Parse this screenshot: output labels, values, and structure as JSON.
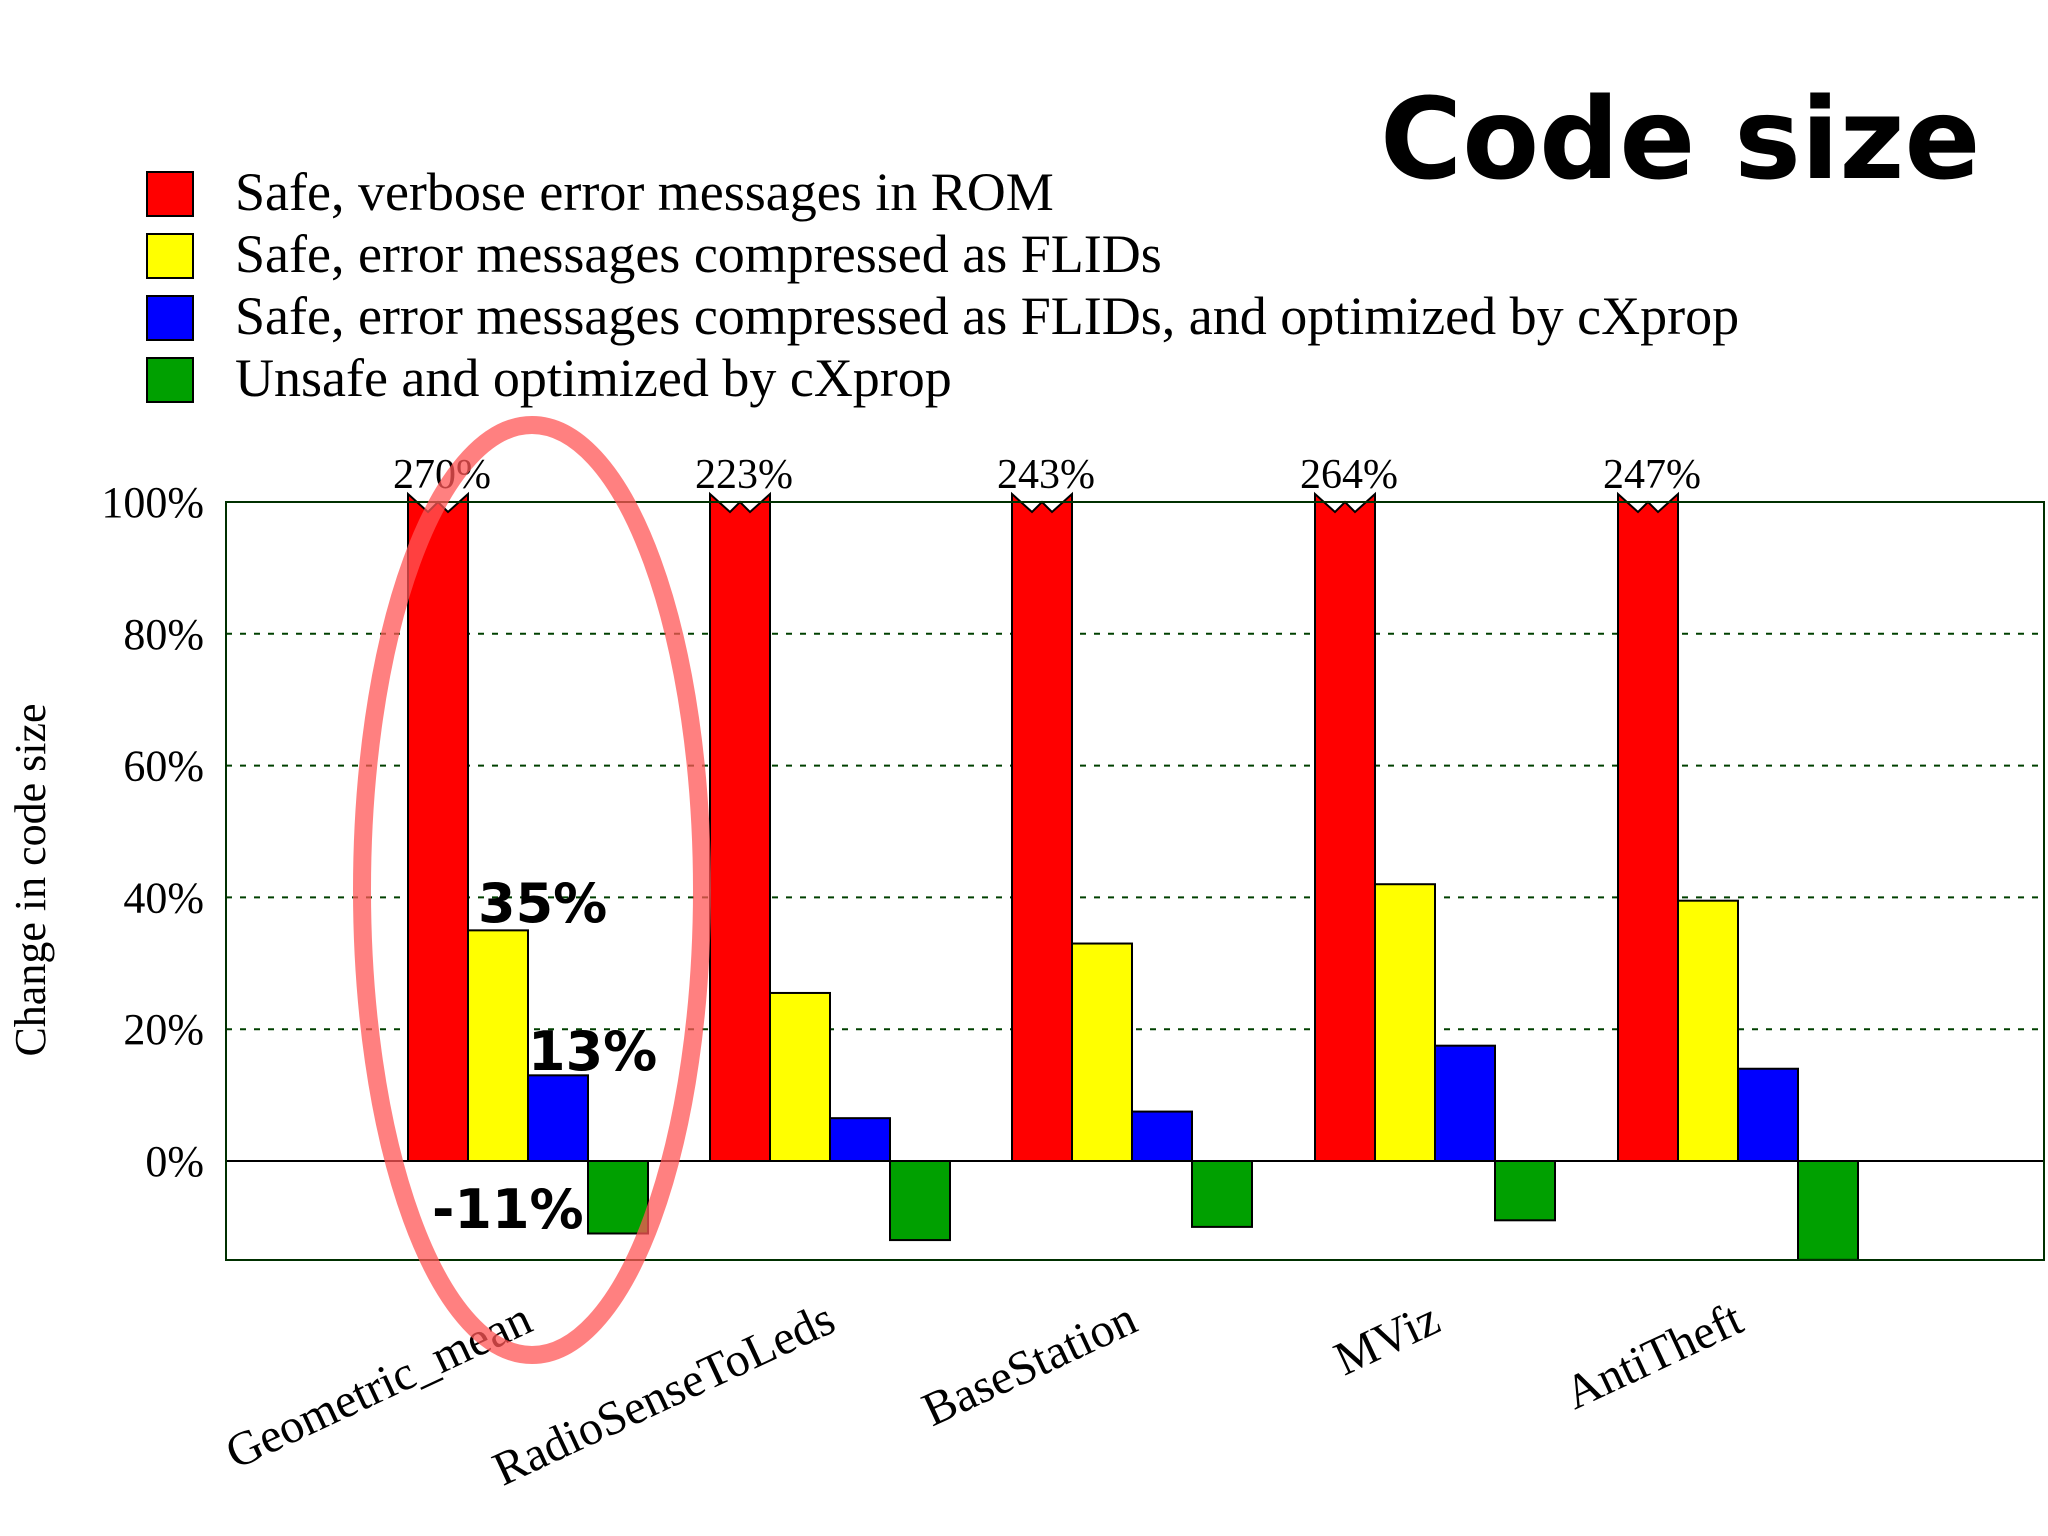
{
  "title": "Code size",
  "chart_data": {
    "type": "bar",
    "ylabel": "Change in code size",
    "ylim": [
      -15,
      100
    ],
    "yticks": [
      "100%",
      "80%",
      "60%",
      "40%",
      "20%",
      "0%"
    ],
    "grid": "horizontal dashed",
    "legend_position": "top-left",
    "categories": [
      "Geometric_mean",
      "RadioSenseToLeds",
      "BaseStation",
      "MViz",
      "AntiTheft"
    ],
    "series": [
      {
        "name": "Safe, verbose error messages in ROM",
        "color": "#ff0000",
        "values": [
          270,
          223,
          243,
          264,
          247
        ],
        "overflow_labels": [
          "270%",
          "223%",
          "243%",
          "264%",
          "247%"
        ]
      },
      {
        "name": "Safe, error messages compressed as FLIDs",
        "color": "#ffff00",
        "values": [
          35,
          25.5,
          33,
          42,
          39.5
        ]
      },
      {
        "name": "Safe, error messages compressed as FLIDs, and optimized by cXprop",
        "color": "#0000ff",
        "values": [
          13,
          6.5,
          7.5,
          17.5,
          14
        ]
      },
      {
        "name": "Unsafe and optimized by cXprop",
        "color": "#00a000",
        "values": [
          -11,
          -12,
          -10,
          -9,
          -15
        ]
      }
    ],
    "annotations": {
      "yellow_geo": "35%",
      "blue_geo": "13%",
      "green_geo": "-11%",
      "highlight": "Geometric_mean"
    }
  }
}
